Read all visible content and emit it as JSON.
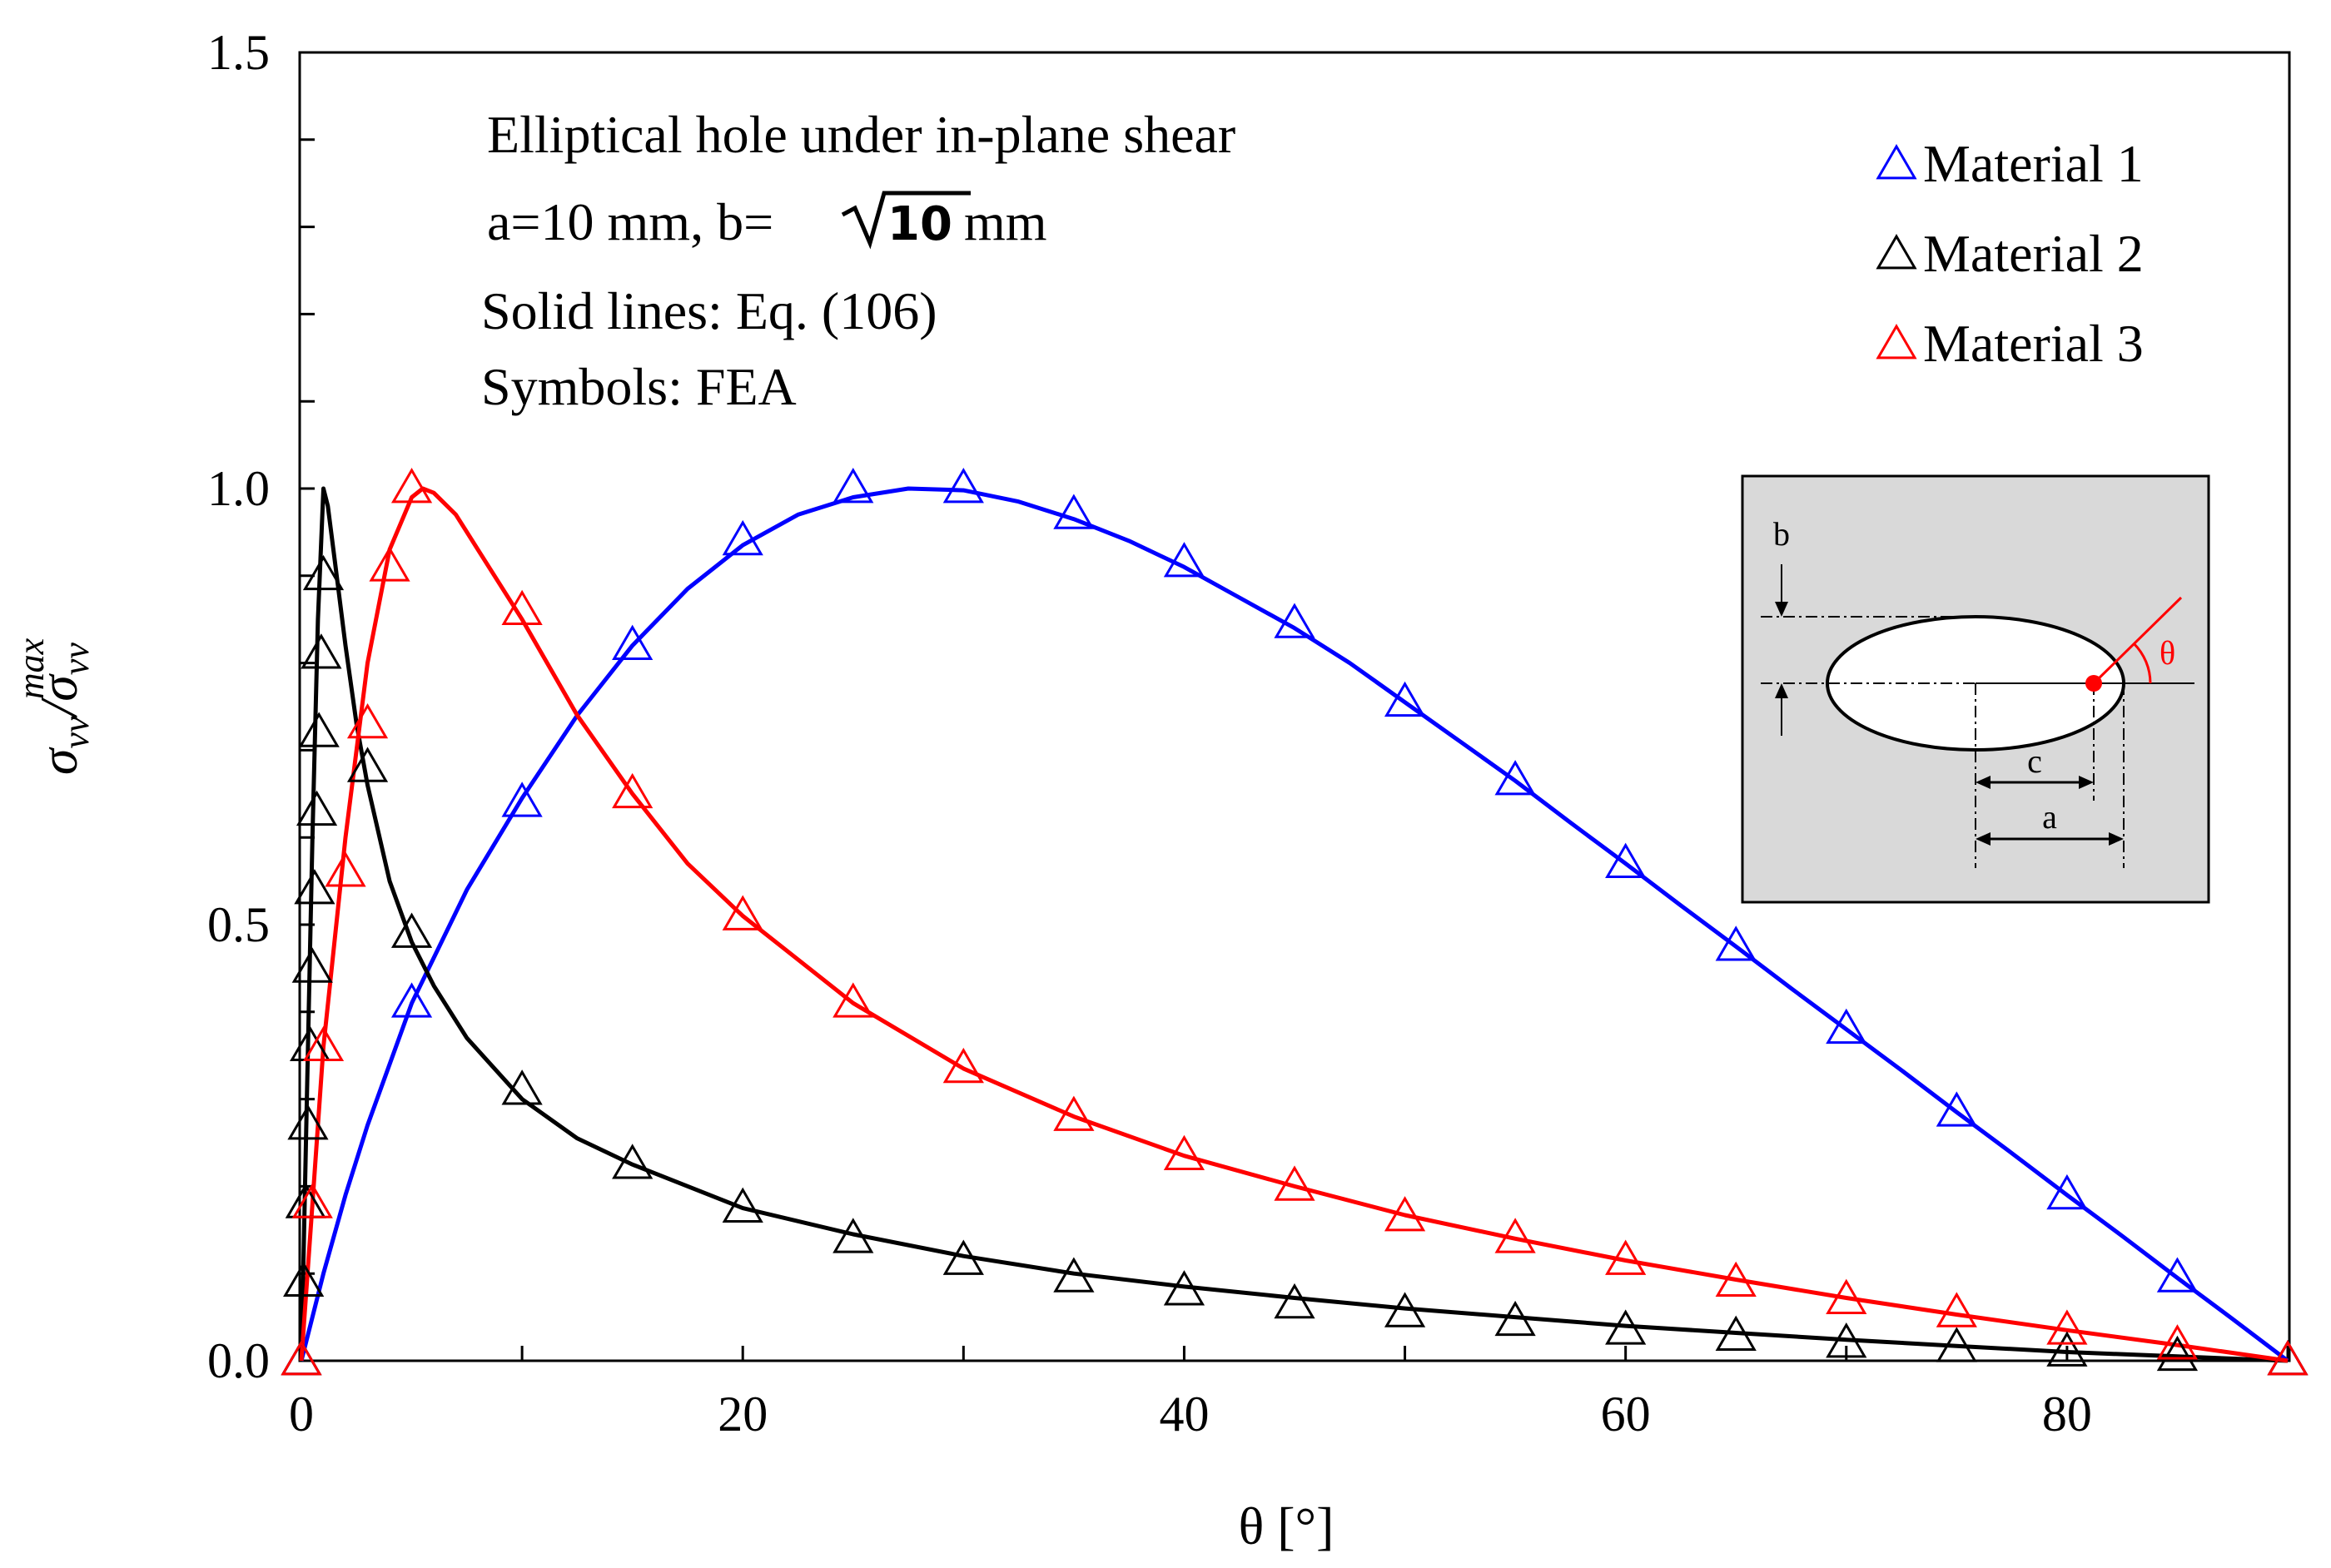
{
  "chart_data": {
    "type": "scatter",
    "title": "",
    "xlabel": "θ [°]",
    "ylabel": "σvv/σvv^max",
    "ylabel_parts": {
      "base": "σ",
      "sub": "vv",
      "sup": "max"
    },
    "xlim": [
      0,
      90
    ],
    "ylim": [
      0,
      1.5
    ],
    "xticks": [
      0,
      20,
      40,
      60,
      80
    ],
    "xtick_labels": [
      "0",
      "20",
      "40",
      "60",
      "80"
    ],
    "yticks": [
      0.0,
      0.5,
      1.0,
      1.5
    ],
    "ytick_labels": [
      "0.0",
      "0.5",
      "1.0",
      "1.5"
    ],
    "grid": false,
    "legend_position": "top-right",
    "annotations": [
      "Elliptical hole under in-plane shear",
      "a=10 mm, b=",
      "Solid lines: Eq. (106)",
      "Symbols: FEA"
    ],
    "annotation_sqrt": {
      "radicand": "10",
      "suffix": " mm"
    },
    "inset": {
      "labels": {
        "b": "b",
        "c": "c",
        "a": "a",
        "theta": "θ"
      }
    },
    "series": [
      {
        "name": "Material 1",
        "color": "#0000ff",
        "marker": "△",
        "fea": {
          "x": [
            0,
            5,
            10,
            15,
            20,
            25,
            30,
            35,
            40,
            45,
            50,
            55,
            60,
            65,
            70,
            75,
            80,
            85,
            90
          ],
          "y": [
            0.0,
            0.41,
            0.64,
            0.82,
            0.94,
            1.0,
            1.0,
            0.97,
            0.915,
            0.845,
            0.755,
            0.665,
            0.57,
            0.475,
            0.38,
            0.285,
            0.19,
            0.095,
            0.0
          ]
        },
        "curve": {
          "x": [
            0,
            1,
            2,
            3,
            5,
            7.5,
            10,
            12.5,
            15,
            17.5,
            20,
            22.5,
            25,
            27.5,
            30,
            32.5,
            35,
            37.5,
            40,
            42.5,
            45,
            47.5,
            50,
            52.5,
            55,
            57.5,
            60,
            62.5,
            65,
            67.5,
            70,
            72.5,
            75,
            77.5,
            80,
            82.5,
            85,
            87.5,
            90
          ],
          "y": [
            0.0,
            0.1,
            0.19,
            0.27,
            0.41,
            0.54,
            0.645,
            0.74,
            0.82,
            0.885,
            0.935,
            0.97,
            0.99,
            1.0,
            0.998,
            0.985,
            0.965,
            0.94,
            0.91,
            0.875,
            0.84,
            0.8,
            0.755,
            0.71,
            0.665,
            0.617,
            0.57,
            0.522,
            0.475,
            0.427,
            0.38,
            0.333,
            0.285,
            0.238,
            0.19,
            0.143,
            0.095,
            0.048,
            0.0
          ]
        }
      },
      {
        "name": "Material 2",
        "color": "#000000",
        "marker": "△",
        "fea": {
          "x": [
            0,
            0.1,
            0.2,
            0.3,
            0.4,
            0.5,
            0.6,
            0.7,
            0.8,
            0.9,
            1.0,
            3,
            5,
            10,
            15,
            20,
            25,
            30,
            35,
            40,
            45,
            50,
            55,
            60,
            65,
            70,
            75,
            80,
            85,
            90
          ],
          "y": [
            0.0,
            0.09,
            0.18,
            0.27,
            0.36,
            0.45,
            0.54,
            0.63,
            0.72,
            0.81,
            0.9,
            0.68,
            0.49,
            0.31,
            0.225,
            0.175,
            0.14,
            0.115,
            0.095,
            0.08,
            0.065,
            0.055,
            0.045,
            0.035,
            0.028,
            0.02,
            0.015,
            0.01,
            0.005,
            0.0
          ]
        },
        "curve": {
          "x": [
            0,
            0.25,
            0.5,
            0.75,
            1.0,
            1.2,
            1.5,
            2,
            2.5,
            3,
            4,
            5,
            6,
            7.5,
            10,
            12.5,
            15,
            20,
            25,
            30,
            35,
            40,
            45,
            50,
            55,
            60,
            65,
            70,
            75,
            80,
            85,
            90
          ],
          "y": [
            0.0,
            0.3,
            0.6,
            0.85,
            1.0,
            0.98,
            0.92,
            0.82,
            0.73,
            0.66,
            0.55,
            0.48,
            0.43,
            0.37,
            0.3,
            0.255,
            0.225,
            0.175,
            0.145,
            0.12,
            0.1,
            0.085,
            0.072,
            0.06,
            0.05,
            0.04,
            0.032,
            0.024,
            0.017,
            0.01,
            0.005,
            0.0
          ]
        }
      },
      {
        "name": "Material 3",
        "color": "#ff0000",
        "marker": "△",
        "fea": {
          "x": [
            0,
            0.5,
            1,
            2,
            3,
            4,
            5,
            10,
            15,
            20,
            25,
            30,
            35,
            40,
            45,
            50,
            55,
            60,
            65,
            70,
            75,
            80,
            85,
            90
          ],
          "y": [
            0.0,
            0.18,
            0.36,
            0.56,
            0.73,
            0.91,
            1.0,
            0.86,
            0.65,
            0.51,
            0.41,
            0.335,
            0.28,
            0.235,
            0.2,
            0.165,
            0.14,
            0.115,
            0.09,
            0.07,
            0.055,
            0.035,
            0.018,
            0.0
          ]
        },
        "curve": {
          "x": [
            0,
            0.5,
            1,
            2,
            3,
            4,
            5,
            5.5,
            6,
            7,
            8,
            10,
            12.5,
            15,
            17.5,
            20,
            25,
            30,
            35,
            40,
            45,
            50,
            55,
            60,
            65,
            70,
            75,
            80,
            85,
            90
          ],
          "y": [
            0.0,
            0.18,
            0.36,
            0.6,
            0.8,
            0.93,
            0.99,
            1.0,
            0.995,
            0.97,
            0.93,
            0.85,
            0.74,
            0.65,
            0.57,
            0.51,
            0.41,
            0.335,
            0.28,
            0.235,
            0.2,
            0.167,
            0.14,
            0.115,
            0.093,
            0.072,
            0.053,
            0.035,
            0.018,
            0.0
          ]
        }
      }
    ]
  }
}
